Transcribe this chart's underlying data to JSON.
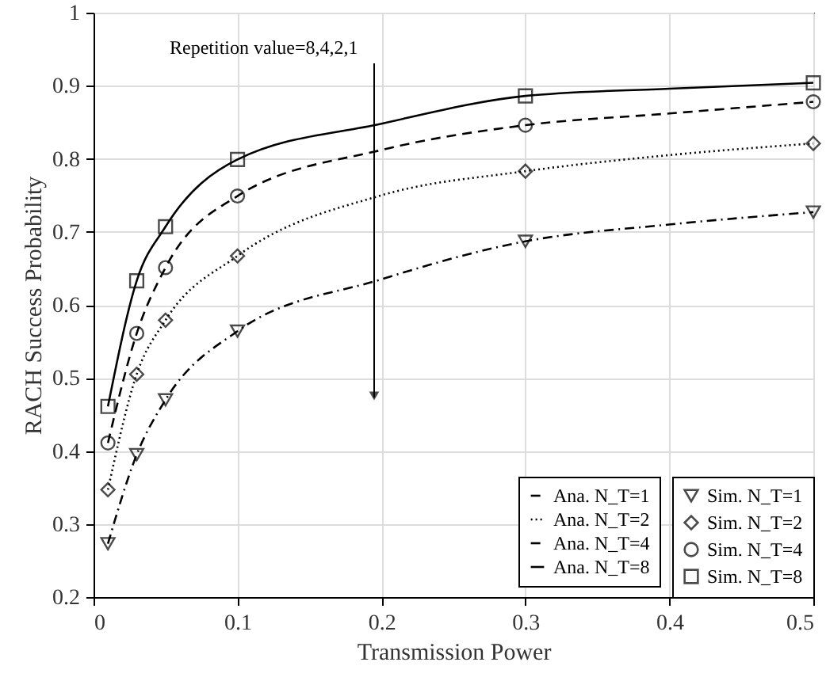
{
  "chart_data": {
    "type": "line",
    "xlabel": "Transmission Power",
    "ylabel": "RACH Success Probability",
    "xlim": [
      0,
      0.5
    ],
    "xticks": [
      0,
      0.1,
      0.2,
      0.3,
      0.4,
      0.5
    ],
    "ylim": [
      0.2,
      1
    ],
    "yticks": [
      0.2,
      0.3,
      0.4,
      0.5,
      0.6,
      0.7,
      0.8,
      0.9,
      1
    ],
    "grid": true,
    "legend": "bottom right",
    "annotations": [
      "Repetition value=8,4,2,1"
    ],
    "series": [
      {
        "name": "Ana. N_T=1",
        "line_style": "dashdot",
        "color": "#000000",
        "x": [
          0.01,
          0.03,
          0.05,
          0.1,
          0.2,
          0.3,
          0.4,
          0.5
        ],
        "values": [
          0.273,
          0.395,
          0.47,
          0.564,
          0.635,
          0.687,
          0.71,
          0.727
        ]
      },
      {
        "name": "Ana. N_T=2",
        "line_style": "dotted",
        "color": "#000000",
        "x": [
          0.01,
          0.03,
          0.05,
          0.1,
          0.2,
          0.3,
          0.4,
          0.5
        ],
        "values": [
          0.347,
          0.505,
          0.579,
          0.667,
          0.75,
          0.783,
          0.805,
          0.821
        ]
      },
      {
        "name": "Ana. N_T=4",
        "line_style": "dashed",
        "color": "#000000",
        "x": [
          0.01,
          0.03,
          0.05,
          0.1,
          0.2,
          0.3,
          0.4,
          0.5
        ],
        "values": [
          0.411,
          0.561,
          0.651,
          0.749,
          0.812,
          0.846,
          0.862,
          0.878
        ]
      },
      {
        "name": "Ana. N_T=8",
        "line_style": "solid",
        "color": "#000000",
        "x": [
          0.01,
          0.03,
          0.05,
          0.1,
          0.2,
          0.3,
          0.4,
          0.5
        ],
        "values": [
          0.461,
          0.633,
          0.707,
          0.799,
          0.848,
          0.886,
          0.896,
          0.904
        ]
      },
      {
        "name": "Sim. N_T=1",
        "type": "scatter",
        "marker": "triangle",
        "color": "#000000",
        "x": [
          0.01,
          0.03,
          0.05,
          0.1,
          0.3,
          0.5
        ],
        "values": [
          0.273,
          0.395,
          0.47,
          0.564,
          0.687,
          0.727
        ]
      },
      {
        "name": "Sim. N_T=2",
        "type": "scatter",
        "marker": "diamond",
        "color": "#000000",
        "x": [
          0.01,
          0.03,
          0.05,
          0.1,
          0.3,
          0.5
        ],
        "values": [
          0.347,
          0.505,
          0.579,
          0.667,
          0.783,
          0.821
        ]
      },
      {
        "name": "Sim. N_T=4",
        "type": "scatter",
        "marker": "circle",
        "color": "#000000",
        "x": [
          0.01,
          0.03,
          0.05,
          0.1,
          0.3,
          0.5
        ],
        "values": [
          0.411,
          0.561,
          0.651,
          0.749,
          0.846,
          0.878
        ]
      },
      {
        "name": "Sim. N_T=8",
        "type": "scatter",
        "marker": "square",
        "color": "#000000",
        "x": [
          0.01,
          0.03,
          0.05,
          0.1,
          0.3,
          0.5
        ],
        "values": [
          0.461,
          0.633,
          0.707,
          0.799,
          0.886,
          0.904
        ]
      }
    ]
  }
}
